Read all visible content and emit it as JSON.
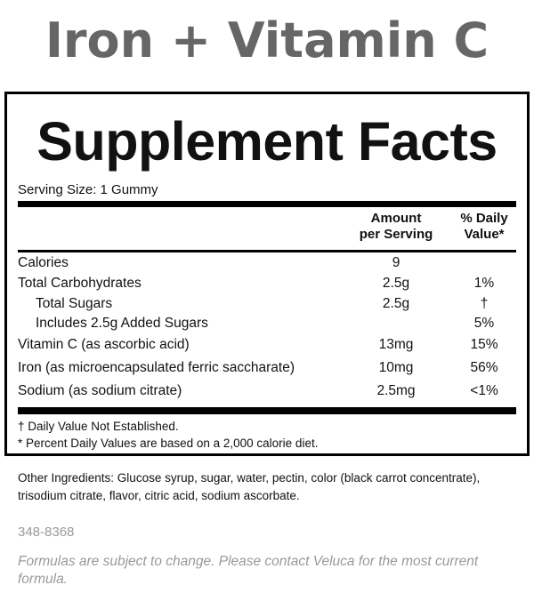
{
  "product_title": "Iron + Vitamin C",
  "label": {
    "heading": "Supplement Facts",
    "serving_size": "Serving Size: 1 Gummy",
    "col_amount": [
      "Amount",
      "per Serving"
    ],
    "col_dv": [
      "% Daily",
      "Value*"
    ],
    "rows": [
      {
        "name": "Calories",
        "amount": "9",
        "dv": "",
        "indent": false
      },
      {
        "name": "Total Carbohydrates",
        "amount": "2.5g",
        "dv": "1%",
        "indent": false
      },
      {
        "name": "Total Sugars",
        "amount": "2.5g",
        "dv": "†",
        "indent": true
      },
      {
        "name": "Includes 2.5g Added Sugars",
        "amount": "",
        "dv": "5%",
        "indent": true
      },
      {
        "name": "Vitamin C (as ascorbic acid)",
        "amount": "13mg",
        "dv": "15%",
        "indent": false
      },
      {
        "name": "Iron (as microencapsulated ferric saccharate)",
        "amount": "10mg",
        "dv": "56%",
        "indent": false
      },
      {
        "name": "Sodium (as sodium citrate)",
        "amount": "2.5mg",
        "dv": "<1%",
        "indent": false
      }
    ],
    "footnotes": [
      "† Daily Value Not Established.",
      "* Percent Daily Values are based on a 2,000 calorie diet."
    ]
  },
  "other_ingredients": "Other Ingredients: Glucose syrup, sugar, water, pectin, color (black carrot concentrate), trisodium citrate, flavor, citric acid, sodium ascorbate.",
  "product_code": "348-8368",
  "disclaimer": "Formulas are subject to change. Please contact Veluca for the most current formula."
}
